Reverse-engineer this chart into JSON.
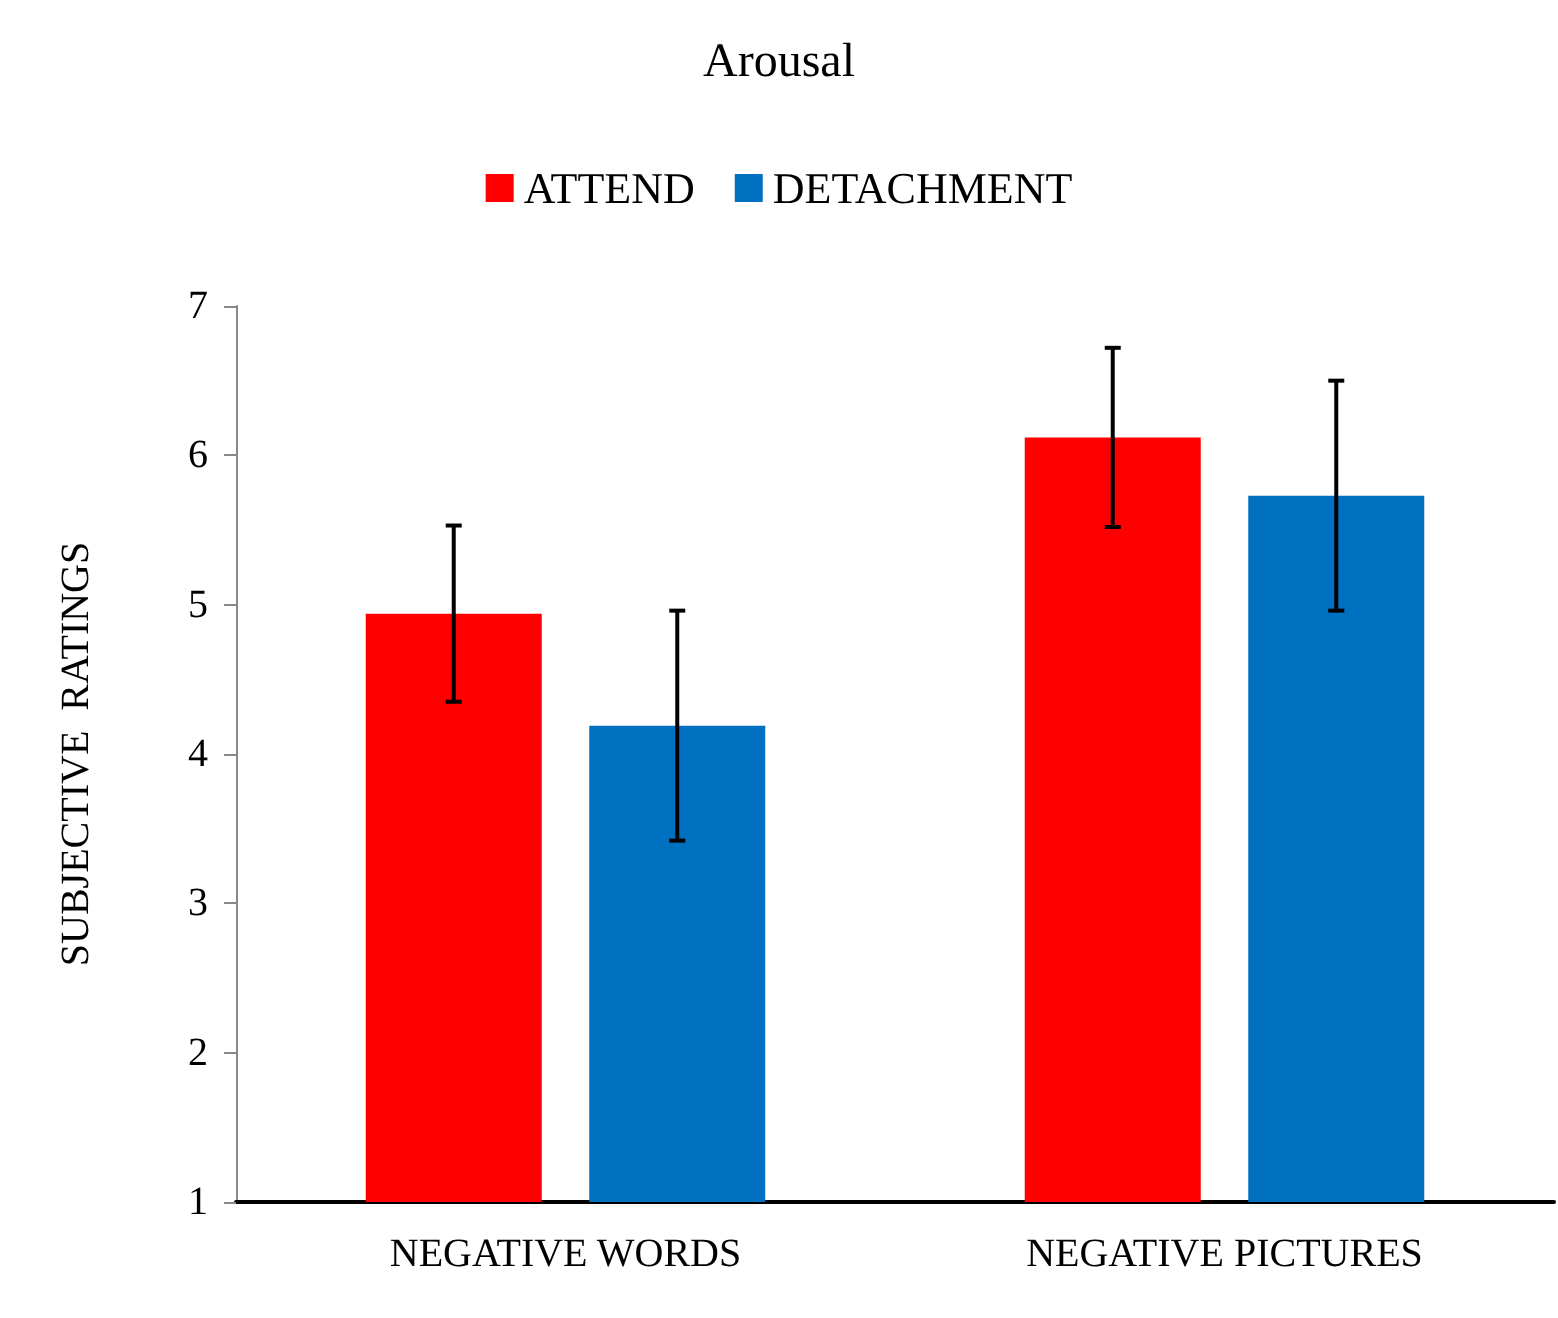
{
  "chart_data": {
    "type": "bar",
    "title": "Arousal",
    "ylabel": "SUBJECTIVE  RATINGS",
    "categories": [
      "NEGATIVE WORDS",
      "NEGATIVE PICTURES"
    ],
    "series": [
      {
        "name": "ATTEND",
        "color": "#ff0000",
        "values": [
          4.94,
          6.12
        ],
        "errors": [
          0.59,
          0.6
        ]
      },
      {
        "name": "DETACHMENT",
        "color": "#0070c0",
        "values": [
          4.19,
          5.73
        ],
        "errors": [
          0.77,
          0.77
        ]
      }
    ],
    "ylim": [
      1,
      7
    ],
    "yticks": [
      1,
      2,
      3,
      4,
      5,
      6,
      7
    ],
    "grid": false,
    "legend": "top"
  }
}
